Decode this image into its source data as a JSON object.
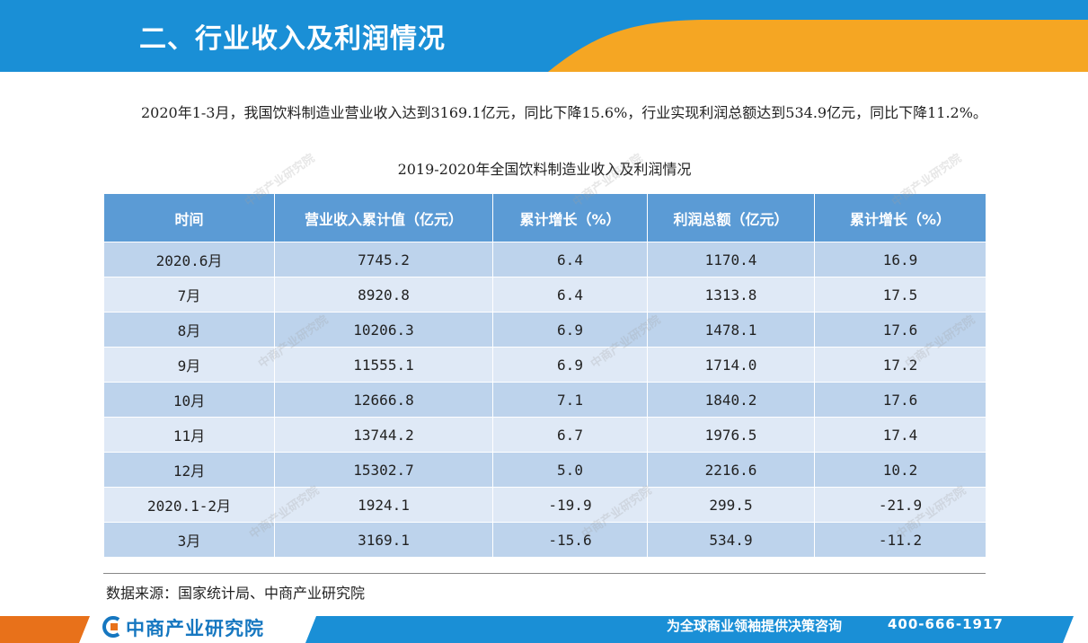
{
  "header": {
    "title": "二、行业收入及利润情况"
  },
  "intro": {
    "text": "2020年1-3月，我国饮料制造业营业收入达到3169.1亿元，同比下降15.6%，行业实现利润总额达到534.9亿元，同比下降11.2%。"
  },
  "table": {
    "title": "2019-2020年全国饮料制造业收入及利润情况",
    "headers": [
      "时间",
      "营业收入累计值（亿元）",
      "累计增长（%）",
      "利润总额（亿元）",
      "累计增长（%）"
    ],
    "rows": [
      [
        "2020.6月",
        "7745.2",
        "6.4",
        "1170.4",
        "16.9"
      ],
      [
        "7月",
        "8920.8",
        "6.4",
        "1313.8",
        "17.5"
      ],
      [
        "8月",
        "10206.3",
        "6.9",
        "1478.1",
        "17.6"
      ],
      [
        "9月",
        "11555.1",
        "6.9",
        "1714.0",
        "17.2"
      ],
      [
        "10月",
        "12666.8",
        "7.1",
        "1840.2",
        "17.6"
      ],
      [
        "11月",
        "13744.2",
        "6.7",
        "1976.5",
        "17.4"
      ],
      [
        "12月",
        "15302.7",
        "5.0",
        "2216.6",
        "10.2"
      ],
      [
        "2020.1-2月",
        "1924.1",
        "-19.9",
        "299.5",
        "-21.9"
      ],
      [
        "3月",
        "3169.1",
        "-15.6",
        "534.9",
        "-11.2"
      ]
    ]
  },
  "source": {
    "text": "数据来源：国家统计局、中商产业研究院"
  },
  "footer": {
    "logo": "中商产业研究院",
    "slogan": "为全球商业领袖提供决策咨询",
    "phone": "400-666-1917"
  },
  "watermark": {
    "text": "中商产业研究院"
  },
  "colors": {
    "header_blue": "#1a8fd6",
    "header_orange": "#f5a623",
    "table_header": "#5b9bd5",
    "row_dark": "#bdd3ec",
    "row_light": "#dfe9f6"
  }
}
